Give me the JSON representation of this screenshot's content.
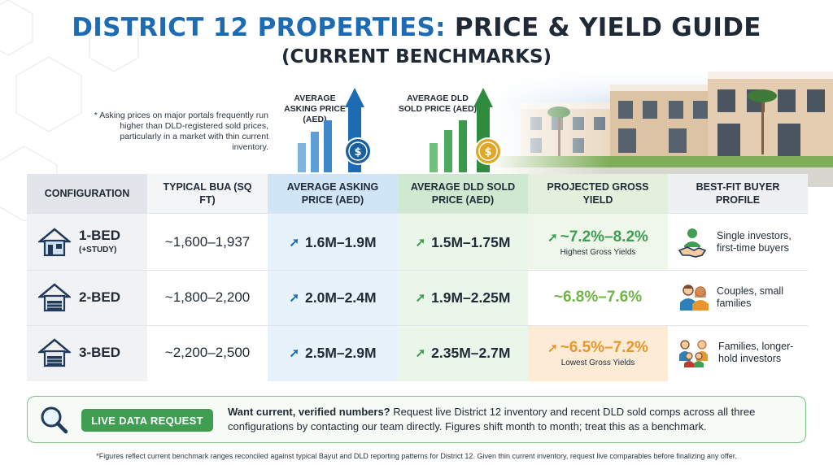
{
  "title": {
    "part1": "DISTRICT 12 PROPERTIES:",
    "part2": "PRICE & YIELD GUIDE",
    "subtitle": "(CURRENT BENCHMARKS)"
  },
  "note": "* Asking prices on major portals frequently run higher than DLD-registered sold prices, particularly in a market with thin current inventory.",
  "metrics": {
    "asking": "AVERAGE ASKING PRICE (AED)",
    "dld": "AVERAGE DLD SOLD PRICE (AED)"
  },
  "headers": {
    "config": "CONFIGURATION",
    "bua": "TYPICAL BUA (SQ FT)",
    "ask": "AVERAGE ASKING PRICE (AED)",
    "dld": "AVERAGE DLD SOLD PRICE (AED)",
    "yield": "PROJECTED GROSS YIELD",
    "buyer": "BEST-FIT BUYER PROFILE"
  },
  "rows": [
    {
      "name": "1-BED",
      "sub": "(+STUDY)",
      "bua": "~1,600–1,937",
      "ask": "1.6M–1.9M",
      "dld": "1.5M–1.75M",
      "yield": "~7.2%–8.2%",
      "yield_note": "Highest Gross Yields",
      "buyer": "Single investors, first-time buyers"
    },
    {
      "name": "2-BED",
      "sub": "",
      "bua": "~1,800–2,200",
      "ask": "2.0M–2.4M",
      "dld": "1.9M–2.25M",
      "yield": "~6.8%–7.6%",
      "yield_note": "",
      "buyer": "Couples, small families"
    },
    {
      "name": "3-BED",
      "sub": "",
      "bua": "~2,200–2,500",
      "ask": "2.5M–2.9M",
      "dld": "2.35M–2.7M",
      "yield": "~6.5%–7.2%",
      "yield_note": "Lowest Gross Yields",
      "buyer": "Families, longer-hold investors"
    }
  ],
  "cta": {
    "button": "LIVE DATA REQUEST",
    "lead": "Want current, verified numbers?",
    "text": " Request live District 12 inventory and recent DLD sold comps across all three configurations by contacting our team directly. Figures shift month to month; treat this as a benchmark."
  },
  "footnote": "*Figures reflect current benchmark ranges reconciled against typical Bayut and DLD reporting patterns for District 12. Given thin current inventory, request live comparables before finalizing any offer.",
  "colors": {
    "blue": "#1d6bb3",
    "green": "#3f9e52",
    "yield_green": "#6fb446",
    "yield_orange": "#e8962e",
    "header_blue_bg": "#d6e9f7",
    "header_green_bg": "#d5ecd6"
  },
  "icons": [
    "house-icon",
    "search-icon",
    "handshake-icon",
    "couple-icon",
    "family-icon",
    "coin-icon",
    "arrow-up-icon"
  ]
}
